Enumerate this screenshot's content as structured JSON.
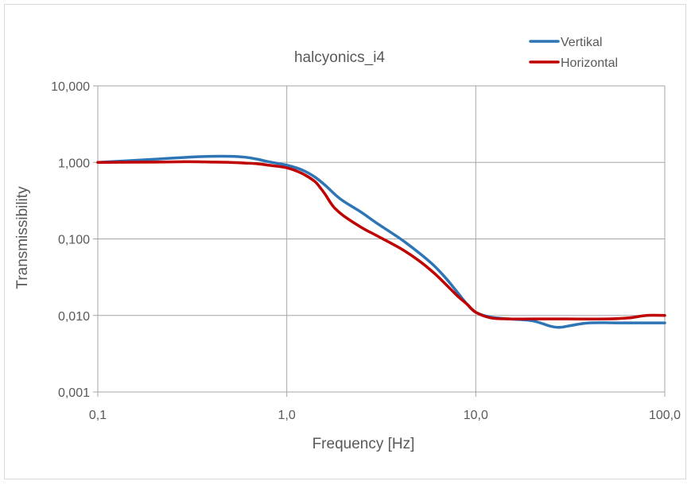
{
  "chart_data": {
    "type": "line",
    "title": "halcyonics_i4",
    "xlabel": "Frequency [Hz]",
    "ylabel": "Transmissibility",
    "x_scale": "log",
    "y_scale": "log",
    "xlim": [
      0.1,
      100
    ],
    "ylim": [
      0.001,
      10
    ],
    "x_ticks": [
      {
        "value": 0.1,
        "label": "0,1"
      },
      {
        "value": 1,
        "label": "1,0"
      },
      {
        "value": 10,
        "label": "10,0"
      },
      {
        "value": 100,
        "label": "100,0"
      }
    ],
    "y_ticks": [
      {
        "value": 0.001,
        "label": "0,001"
      },
      {
        "value": 0.01,
        "label": "0,010"
      },
      {
        "value": 0.1,
        "label": "0,100"
      },
      {
        "value": 1,
        "label": "1,000"
      },
      {
        "value": 10,
        "label": "10,000"
      }
    ],
    "grid": true,
    "legend_position": "top-right",
    "series": [
      {
        "name": "Vertikal",
        "color": "#2e75b6",
        "points": [
          [
            0.1,
            1.0
          ],
          [
            0.2,
            1.1
          ],
          [
            0.3,
            1.17
          ],
          [
            0.4,
            1.2
          ],
          [
            0.5,
            1.2
          ],
          [
            0.6,
            1.17
          ],
          [
            0.7,
            1.1
          ],
          [
            0.8,
            1.02
          ],
          [
            1.0,
            0.92
          ],
          [
            1.2,
            0.8
          ],
          [
            1.4,
            0.65
          ],
          [
            1.6,
            0.5
          ],
          [
            1.8,
            0.38
          ],
          [
            2.0,
            0.31
          ],
          [
            2.5,
            0.22
          ],
          [
            3.0,
            0.16
          ],
          [
            4.0,
            0.1
          ],
          [
            5.0,
            0.066
          ],
          [
            6.0,
            0.045
          ],
          [
            7.0,
            0.03
          ],
          [
            8.0,
            0.02
          ],
          [
            9.0,
            0.014
          ],
          [
            10.0,
            0.011
          ],
          [
            12.0,
            0.0095
          ],
          [
            15.0,
            0.009
          ],
          [
            20.0,
            0.0085
          ],
          [
            25.0,
            0.0072
          ],
          [
            28.0,
            0.007
          ],
          [
            32.0,
            0.0074
          ],
          [
            40.0,
            0.008
          ],
          [
            60.0,
            0.008
          ],
          [
            100.0,
            0.008
          ]
        ]
      },
      {
        "name": "Horizontal",
        "color": "#c00000",
        "points": [
          [
            0.1,
            1.0
          ],
          [
            0.2,
            1.01
          ],
          [
            0.3,
            1.02
          ],
          [
            0.4,
            1.01
          ],
          [
            0.5,
            1.0
          ],
          [
            0.6,
            0.98
          ],
          [
            0.7,
            0.96
          ],
          [
            0.8,
            0.92
          ],
          [
            1.0,
            0.85
          ],
          [
            1.2,
            0.72
          ],
          [
            1.4,
            0.57
          ],
          [
            1.5,
            0.47
          ],
          [
            1.6,
            0.38
          ],
          [
            1.7,
            0.3
          ],
          [
            1.8,
            0.25
          ],
          [
            2.0,
            0.2
          ],
          [
            2.5,
            0.14
          ],
          [
            3.0,
            0.11
          ],
          [
            4.0,
            0.075
          ],
          [
            5.0,
            0.052
          ],
          [
            6.0,
            0.036
          ],
          [
            7.0,
            0.025
          ],
          [
            8.0,
            0.018
          ],
          [
            9.0,
            0.014
          ],
          [
            10.0,
            0.011
          ],
          [
            12.0,
            0.0093
          ],
          [
            15.0,
            0.009
          ],
          [
            20.0,
            0.009
          ],
          [
            30.0,
            0.009
          ],
          [
            50.0,
            0.009
          ],
          [
            65.0,
            0.0093
          ],
          [
            80.0,
            0.01
          ],
          [
            100.0,
            0.01
          ]
        ]
      }
    ]
  }
}
